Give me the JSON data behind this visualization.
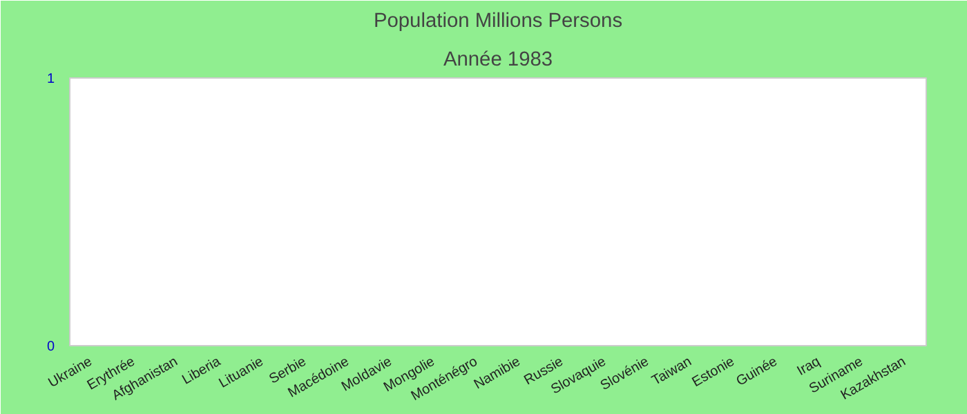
{
  "chart_data": {
    "type": "bar",
    "title": "Population Millions Persons",
    "subtitle": "Année 1983",
    "categories": [
      "Ukraine",
      "Erythrée",
      "Afghanistan",
      "Liberia",
      "Lituanie",
      "Serbie",
      "Macédoine",
      "Moldavie",
      "Mongolie",
      "Monténégro",
      "Namibie",
      "Russie",
      "Slovaquie",
      "Slovénie",
      "Taiwan",
      "Estonie",
      "Guinée",
      "Iraq",
      "Suriname",
      "Kazakhstan"
    ],
    "values": [
      null,
      null,
      null,
      null,
      null,
      null,
      null,
      null,
      null,
      null,
      null,
      null,
      null,
      null,
      null,
      null,
      null,
      null,
      null,
      null
    ],
    "ylim": [
      0,
      1
    ],
    "yticks": [
      0,
      1
    ],
    "grid": false
  }
}
